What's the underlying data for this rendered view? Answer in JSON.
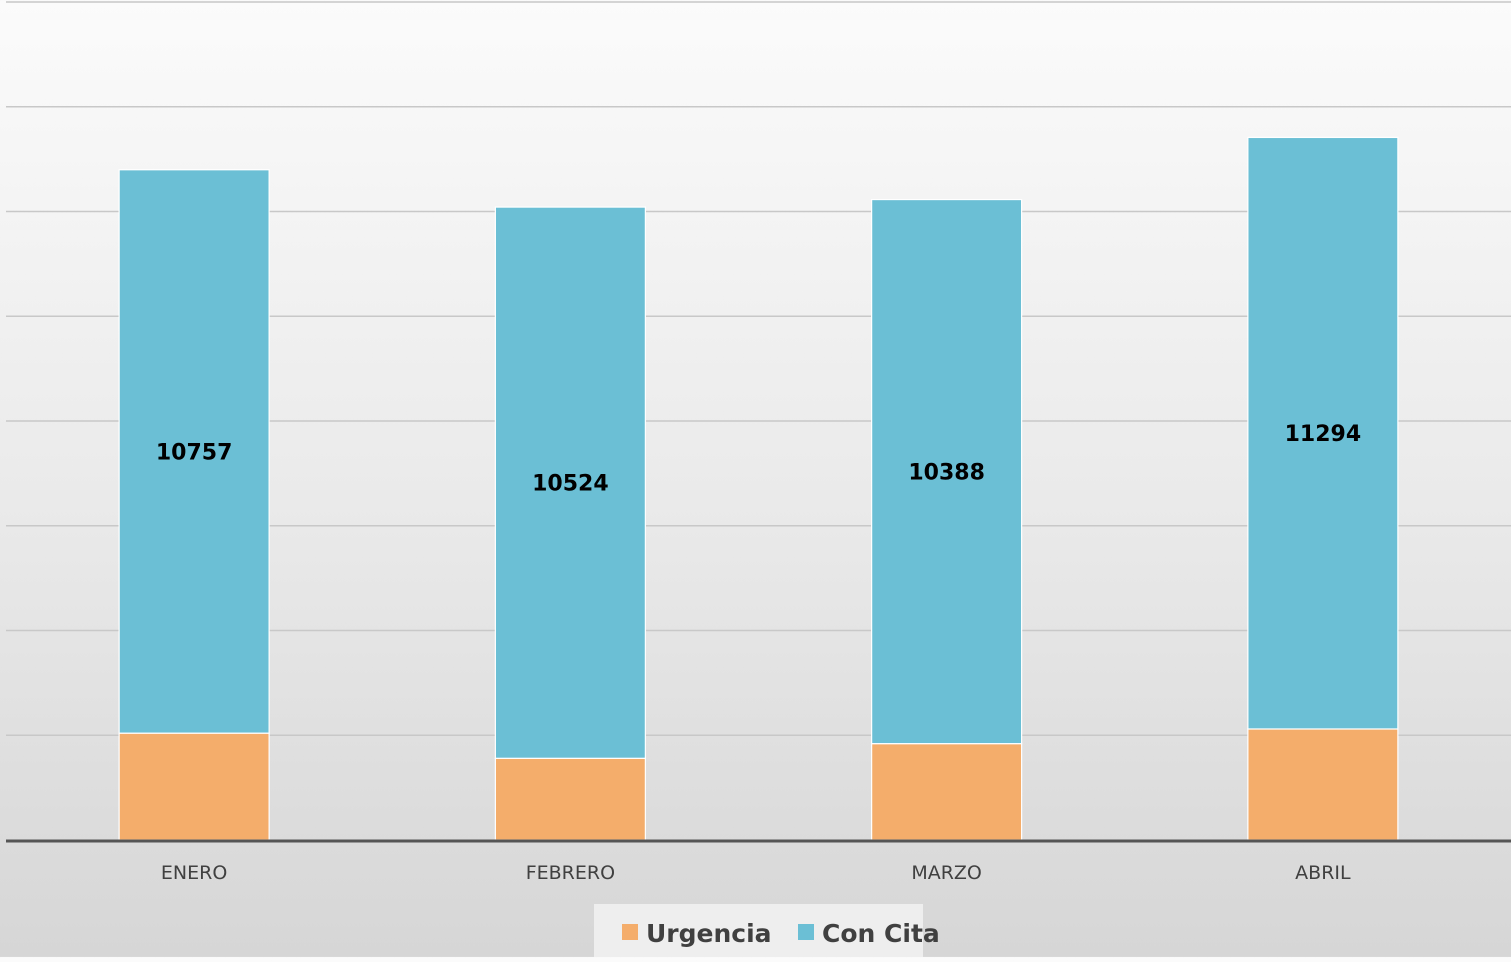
{
  "chart_data": {
    "type": "bar",
    "stacked": true,
    "categories": [
      "ENERO",
      "FEBRERO",
      "MARZO",
      "ABRIL"
    ],
    "series": [
      {
        "name": "Urgencia",
        "color": "#f4ad6b",
        "values": [
          2040,
          1560,
          1840,
          2120
        ],
        "labeled": false
      },
      {
        "name": "Con Cita",
        "color": "#6bbfd5",
        "values": [
          10757,
          10524,
          10388,
          11294
        ],
        "labeled": true
      }
    ],
    "title": "",
    "xlabel": "",
    "ylabel": "",
    "ylim": [
      0,
      16000
    ],
    "gridlines": [
      0,
      2000,
      4000,
      6000,
      8000,
      10000,
      12000,
      14000,
      16000
    ],
    "grid": true,
    "y_tick_labels_visible": false,
    "legend": "bottom"
  }
}
